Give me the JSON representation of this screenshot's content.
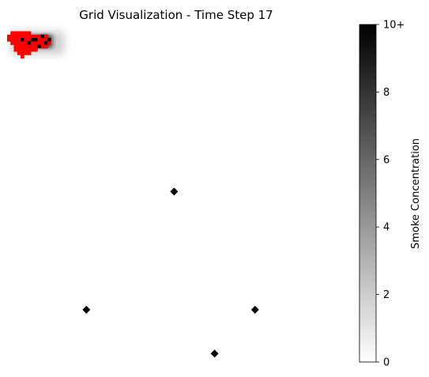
{
  "chart_data": {
    "type": "heatmap",
    "title": "Grid Visualization - Time Step 17",
    "xlabel": "",
    "ylabel": "",
    "grid": false,
    "axes_visible": false,
    "grid_cells": {
      "cols": 100,
      "rows": 100
    },
    "smoke_plume": {
      "description_free": true,
      "core": {
        "x": [
          2,
          14
        ],
        "y": [
          3,
          7
        ],
        "value": 9
      },
      "halo_extent": {
        "x": [
          1,
          17
        ],
        "y": [
          2,
          9
        ]
      },
      "gradient_direction": "increasing toward x=14"
    },
    "fire_cells": [
      [
        1,
        2
      ],
      [
        2,
        2
      ],
      [
        3,
        2
      ],
      [
        4,
        2
      ],
      [
        5,
        2
      ],
      [
        6,
        2
      ],
      [
        0,
        3
      ],
      [
        1,
        3
      ],
      [
        2,
        3
      ],
      [
        3,
        3
      ],
      [
        4,
        3
      ],
      [
        5,
        3
      ],
      [
        6,
        3
      ],
      [
        7,
        3
      ],
      [
        8,
        3
      ],
      [
        9,
        3
      ],
      [
        10,
        3
      ],
      [
        11,
        3
      ],
      [
        0,
        4
      ],
      [
        1,
        4
      ],
      [
        2,
        4
      ],
      [
        3,
        4
      ],
      [
        4,
        4
      ],
      [
        5,
        4
      ],
      [
        6,
        4
      ],
      [
        7,
        4
      ],
      [
        8,
        4
      ],
      [
        9,
        4
      ],
      [
        10,
        4
      ],
      [
        11,
        4
      ],
      [
        12,
        4
      ],
      [
        1,
        5
      ],
      [
        2,
        5
      ],
      [
        3,
        5
      ],
      [
        4,
        5
      ],
      [
        5,
        5
      ],
      [
        6,
        5
      ],
      [
        7,
        5
      ],
      [
        8,
        5
      ],
      [
        9,
        5
      ],
      [
        10,
        5
      ],
      [
        11,
        5
      ],
      [
        12,
        5
      ],
      [
        2,
        6
      ],
      [
        3,
        6
      ],
      [
        4,
        6
      ],
      [
        5,
        6
      ],
      [
        6,
        6
      ],
      [
        7,
        6
      ],
      [
        8,
        6
      ],
      [
        9,
        6
      ],
      [
        10,
        6
      ],
      [
        11,
        6
      ],
      [
        2,
        7
      ],
      [
        3,
        7
      ],
      [
        4,
        7
      ],
      [
        5,
        7
      ],
      [
        6,
        7
      ],
      [
        7,
        7
      ],
      [
        8,
        7
      ],
      [
        3,
        8
      ],
      [
        4,
        8
      ],
      [
        5,
        8
      ],
      [
        6,
        8
      ],
      [
        4,
        9
      ]
    ],
    "dark_cells": [
      [
        4,
        4
      ],
      [
        7,
        4
      ],
      [
        8,
        4
      ],
      [
        10,
        3
      ],
      [
        12,
        4
      ],
      [
        9,
        6
      ],
      [
        11,
        5
      ],
      [
        6,
        5
      ]
    ],
    "sensors": [
      {
        "x": 49,
        "y": 49
      },
      {
        "x": 23,
        "y": 84
      },
      {
        "x": 73,
        "y": 84
      },
      {
        "x": 61,
        "y": 97
      }
    ],
    "colorbar": {
      "label": "Smoke Concentration",
      "min": 0,
      "max": 10,
      "ticks": [
        "0",
        "2",
        "4",
        "6",
        "8",
        "10+"
      ],
      "tick_values": [
        0,
        2,
        4,
        6,
        8,
        10
      ],
      "colormap": [
        "#ffffff",
        "#000000"
      ]
    },
    "colors": {
      "fire": "#ff0000",
      "sensor": "#000000",
      "background": "#ffffff"
    }
  }
}
